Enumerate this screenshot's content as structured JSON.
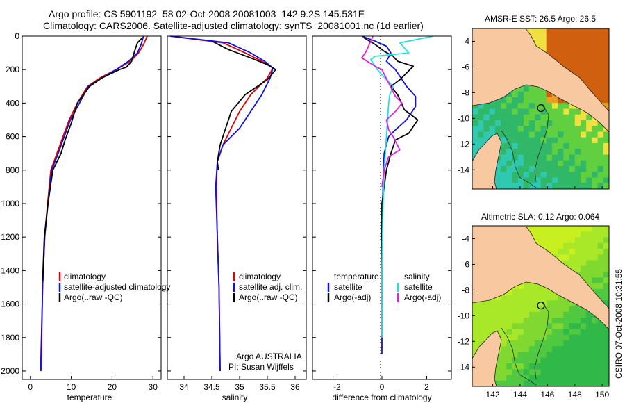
{
  "header": {
    "line1": "Argo profile: CS 5901192_58 02-Oct-2008 20081003_142 9.2S 145.531E",
    "line2": "Climatology: CARS2006. Satellite-adjusted climatology: synTS_20081001.nc (1d earlier)"
  },
  "credit": {
    "stamp": "CSIRO 07-Oct-2008 10:31:55",
    "argo": "Argo AUSTRALIA",
    "pi": "PI: Susan Wijffels"
  },
  "colors": {
    "climatology": "#e00000",
    "satellite": "#1010e0",
    "argo": "#000000",
    "salinity_satellite": "#20e0e0",
    "salinity_argo": "#e020e0",
    "land": "#f8c8a0"
  },
  "chart_data": [
    {
      "id": "temperature",
      "type": "line",
      "xlabel": "temperature",
      "xlim": [
        -2,
        32
      ],
      "ylim": [
        2050,
        0
      ],
      "x_ticks": [
        0,
        10,
        20,
        30
      ],
      "y_ticks": [
        0,
        200,
        400,
        600,
        800,
        1000,
        1200,
        1400,
        1600,
        1800,
        2000
      ],
      "legend": [
        "climatology",
        "satellite-adjusted climatology",
        "Argo(..raw -QC)"
      ],
      "series": [
        {
          "name": "climatology",
          "color": "#e00000",
          "x": [
            28.6,
            27.7,
            26.5,
            24.5,
            21.0,
            17.0,
            14.0,
            11.5,
            9.5,
            8.0,
            6.5,
            5.0,
            4.2,
            3.5,
            3.0,
            2.6
          ],
          "y": [
            0,
            50,
            100,
            150,
            200,
            250,
            300,
            400,
            500,
            600,
            700,
            800,
            1000,
            1200,
            1500,
            2000
          ]
        },
        {
          "name": "satellite-adjusted climatology",
          "color": "#1010e0",
          "x": [
            27.7,
            27.1,
            26.2,
            24.0,
            21.0,
            17.5,
            14.2,
            12.0,
            9.8,
            8.3,
            6.8,
            5.2,
            4.3,
            3.5,
            3.0,
            2.5
          ],
          "y": [
            0,
            50,
            100,
            150,
            200,
            250,
            300,
            400,
            500,
            600,
            700,
            800,
            1000,
            1200,
            1500,
            2000
          ]
        },
        {
          "name": "Argo(..raw -QC)",
          "color": "#000000",
          "x": [
            27.5,
            26.2,
            25.5,
            24.8,
            23.5,
            21.8,
            17.5,
            14.5,
            11.5,
            10.0,
            8.5,
            7.5,
            5.5,
            4.3,
            3.4,
            3.0
          ],
          "y": [
            8,
            40,
            90,
            150,
            185,
            200,
            250,
            300,
            400,
            520,
            620,
            700,
            800,
            1000,
            1200,
            1460
          ]
        }
      ]
    },
    {
      "id": "salinity",
      "type": "line",
      "xlabel": "salinity",
      "xlim": [
        33.7,
        36.2
      ],
      "ylim": [
        2050,
        0
      ],
      "x_ticks": [
        34,
        34.5,
        35,
        35.5,
        36
      ],
      "legend": [
        "climatology",
        "satellite adj. clim.",
        "Argo(..raw -QC)"
      ],
      "series": [
        {
          "name": "climatology",
          "color": "#e00000",
          "x": [
            33.75,
            34.7,
            35.1,
            35.4,
            35.6,
            35.5,
            35.2,
            35.0,
            34.85,
            34.7,
            34.6,
            34.58,
            34.6,
            34.63,
            34.65
          ],
          "y": [
            0,
            40,
            100,
            150,
            190,
            250,
            350,
            450,
            550,
            650,
            750,
            900,
            1200,
            1500,
            2000
          ]
        },
        {
          "name": "satellite adj. clim.",
          "color": "#1010e0",
          "x": [
            33.75,
            34.8,
            35.2,
            35.45,
            35.6,
            35.55,
            35.4,
            35.2,
            35.0,
            34.7,
            34.6,
            34.57,
            34.6,
            34.63,
            34.65
          ],
          "y": [
            0,
            40,
            100,
            150,
            190,
            250,
            350,
            450,
            550,
            650,
            750,
            900,
            1200,
            1500,
            2000
          ]
        },
        {
          "name": "Argo(..raw -QC)",
          "color": "#000000",
          "x": [
            34.5,
            34.8,
            35.2,
            35.5,
            35.65,
            35.5,
            35.1,
            34.85,
            34.75,
            34.65,
            34.6,
            34.62
          ],
          "y": [
            30,
            80,
            130,
            170,
            200,
            260,
            350,
            450,
            550,
            650,
            750,
            800
          ]
        }
      ]
    },
    {
      "id": "difference",
      "type": "line",
      "xlabel": "difference from climatology",
      "xlim": [
        -3.1,
        3.1
      ],
      "ylim": [
        2050,
        0
      ],
      "x_ticks": [
        -2,
        0,
        2
      ],
      "legend_groups": [
        {
          "title": "temperature",
          "items": [
            "satellite",
            "Argo(-adj)"
          ]
        },
        {
          "title": "salinity",
          "items": [
            "satellite",
            "Argo(-adj)"
          ]
        }
      ],
      "series": [
        {
          "name": "temperature satellite",
          "color": "#1010e0",
          "x": [
            -0.9,
            -0.3,
            0.2,
            0.4,
            0.2,
            0.6,
            1.1,
            1.5,
            1.5,
            1.1,
            0.6,
            0.3,
            0.1,
            0.05,
            0.0,
            0.0,
            0.0
          ],
          "y": [
            0,
            30,
            60,
            100,
            150,
            200,
            300,
            360,
            420,
            500,
            560,
            600,
            700,
            900,
            1200,
            1600,
            1900
          ]
        },
        {
          "name": "temperature Argo(-adj)",
          "color": "#000000",
          "x": [
            -0.8,
            -0.3,
            0.1,
            0.5,
            0.7,
            1.4,
            1.1,
            0.8,
            0.4,
            0.7,
            1.0,
            1.6,
            1.2,
            0.6,
            0.4,
            0.2,
            0.0,
            0.0,
            0.0
          ],
          "y": [
            10,
            50,
            90,
            120,
            150,
            180,
            220,
            260,
            300,
            350,
            440,
            500,
            580,
            620,
            700,
            800,
            1000,
            1300,
            1450
          ]
        },
        {
          "name": "salinity satellite",
          "color": "#20e0e0",
          "x": [
            2.3,
            0.8,
            1.2,
            -0.3,
            -0.5,
            -0.2,
            0.2,
            0.5,
            0.35,
            0.3,
            0.2,
            0.1,
            0.05,
            0.0,
            0.0
          ],
          "y": [
            0,
            40,
            100,
            120,
            140,
            200,
            260,
            300,
            350,
            400,
            600,
            800,
            1000,
            1400,
            1800
          ]
        },
        {
          "name": "salinity Argo(-adj)",
          "color": "#e020e0",
          "x": [
            -0.4,
            -0.7,
            -0.9,
            -0.3,
            0.0,
            0.3,
            0.6,
            0.9,
            0.6,
            0.2,
            0.3,
            0.5,
            0.8,
            0.3,
            0.1,
            0.0
          ],
          "y": [
            0,
            90,
            130,
            180,
            200,
            280,
            360,
            400,
            450,
            500,
            560,
            600,
            680,
            720,
            800,
            900
          ]
        }
      ]
    },
    {
      "id": "sst-map",
      "type": "heatmap",
      "title": "AMSR-E SST: 26.5 Argo: 26.5",
      "xlim": [
        140.5,
        150.5
      ],
      "ylim": [
        -15.5,
        -3
      ],
      "x_ticks": [],
      "y_ticks": [
        -4,
        -6,
        -8,
        -10,
        -12,
        -14
      ],
      "argo_position": {
        "lon": 145.531,
        "lat": -9.2
      }
    },
    {
      "id": "sla-map",
      "type": "heatmap",
      "title": "Altimetric SLA: 0.12 Argo: 0.064",
      "xlim": [
        140.5,
        150.5
      ],
      "ylim": [
        -15.5,
        -3
      ],
      "x_ticks": [
        142,
        144,
        146,
        148,
        150
      ],
      "y_ticks": [
        -4,
        -6,
        -8,
        -10,
        -12,
        -14
      ],
      "argo_position": {
        "lon": 145.531,
        "lat": -9.2
      }
    }
  ]
}
